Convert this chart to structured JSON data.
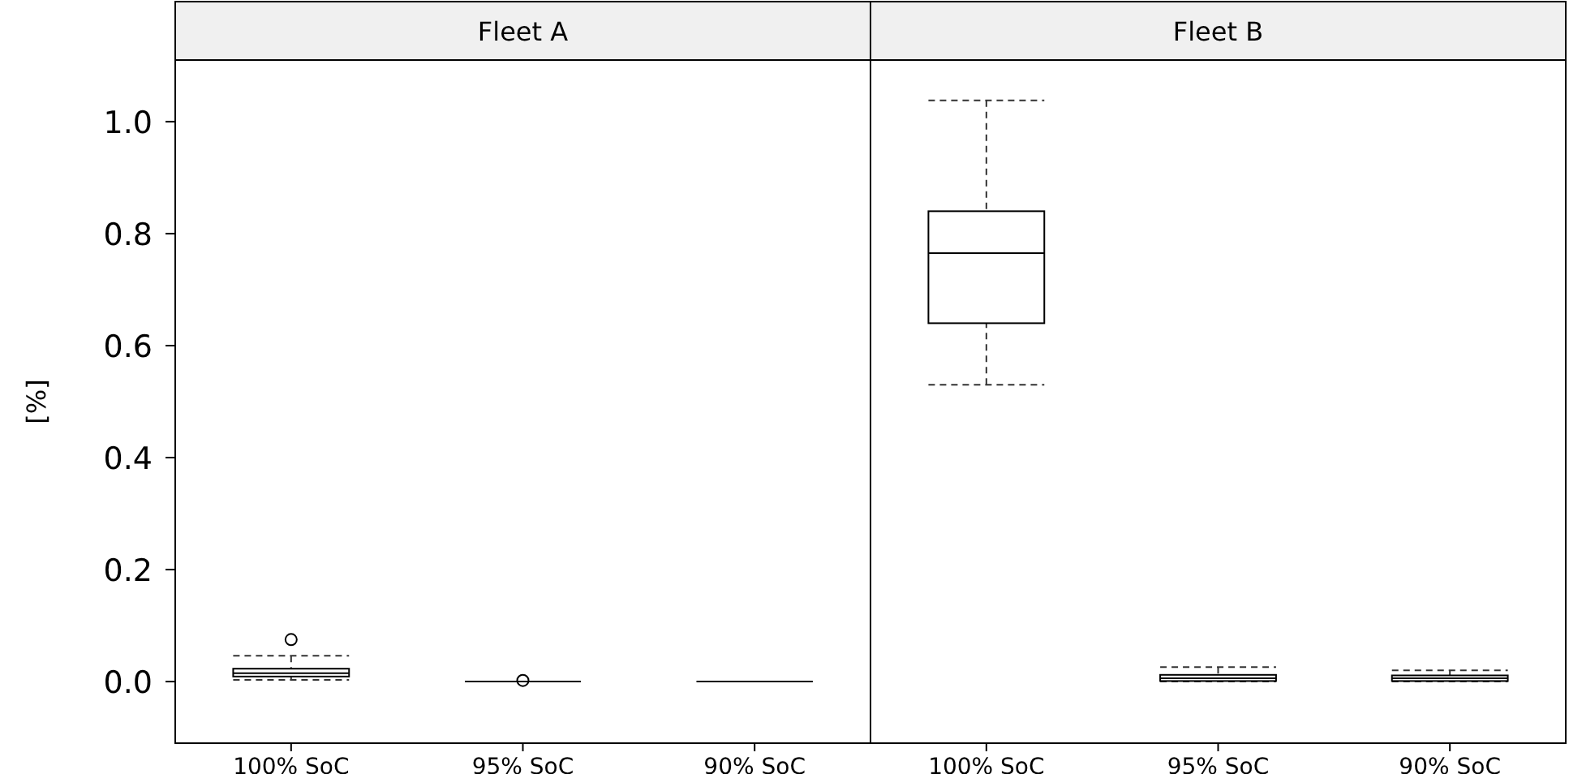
{
  "chart_data": [
    {
      "type": "box",
      "title": "Fleet A",
      "ylabel": "[%]",
      "categories": [
        "100% SoC",
        "95% SoC",
        "90% SoC"
      ],
      "ylim": [
        -0.11,
        1.11
      ],
      "yticks": [
        {
          "value": 0,
          "label": "0.0"
        },
        {
          "value": 0.2,
          "label": "0.2"
        },
        {
          "value": 0.4,
          "label": "0.4"
        },
        {
          "value": 0.6,
          "label": "0.6"
        },
        {
          "value": 0.8,
          "label": "0.8"
        },
        {
          "value": 1,
          "label": "1.0"
        }
      ],
      "grid": false,
      "boxes": [
        {
          "low": 0.003,
          "q1": 0.009,
          "median": 0.015,
          "q3": 0.023,
          "high": 0.046,
          "outliers": [
            0.075
          ]
        },
        {
          "low": 0,
          "q1": 0,
          "median": 0,
          "q3": 0,
          "high": 0,
          "outliers": [
            0.002
          ]
        },
        {
          "low": 0,
          "q1": 0,
          "median": 0,
          "q3": 0,
          "high": 0
        }
      ]
    },
    {
      "type": "box",
      "title": "Fleet B",
      "categories": [
        "100% SoC",
        "95% SoC",
        "90% SoC"
      ],
      "ylim": [
        -0.11,
        1.11
      ],
      "tick_labels": "x",
      "grid": false,
      "boxes": [
        {
          "low": 0.53,
          "q1": 0.64,
          "median": 0.765,
          "q3": 0.84,
          "high": 1.038
        },
        {
          "low": 0,
          "q1": 0.001,
          "median": 0.006,
          "q3": 0.012,
          "high": 0.026
        },
        {
          "low": 0,
          "q1": 0.001,
          "median": 0.006,
          "q3": 0.011,
          "high": 0.02
        }
      ]
    }
  ]
}
